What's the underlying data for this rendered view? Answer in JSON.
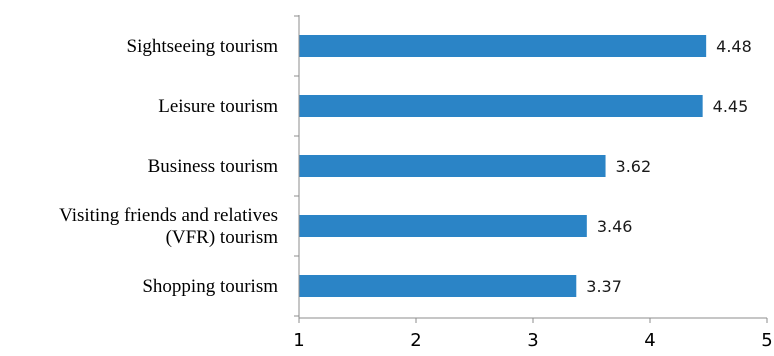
{
  "chart_data": {
    "type": "bar",
    "orientation": "horizontal",
    "categories": [
      [
        "Sightseeing tourism"
      ],
      [
        "Leisure tourism"
      ],
      [
        "Business tourism"
      ],
      [
        "Visiting friends and relatives",
        "(VFR) tourism"
      ],
      [
        "Shopping tourism"
      ]
    ],
    "values": [
      4.48,
      4.45,
      3.62,
      3.46,
      3.37
    ],
    "value_labels": [
      "4.48",
      "4.45",
      "3.62",
      "3.46",
      "3.37"
    ],
    "xlim": [
      1,
      5
    ],
    "xticks": [
      1,
      2,
      3,
      4,
      5
    ],
    "tick_labels": [
      "1",
      "2",
      "3",
      "4",
      "5"
    ],
    "bar_color": "#2B84C6",
    "axis_color": "#8C8C8C",
    "grid": false,
    "legend": "none"
  }
}
